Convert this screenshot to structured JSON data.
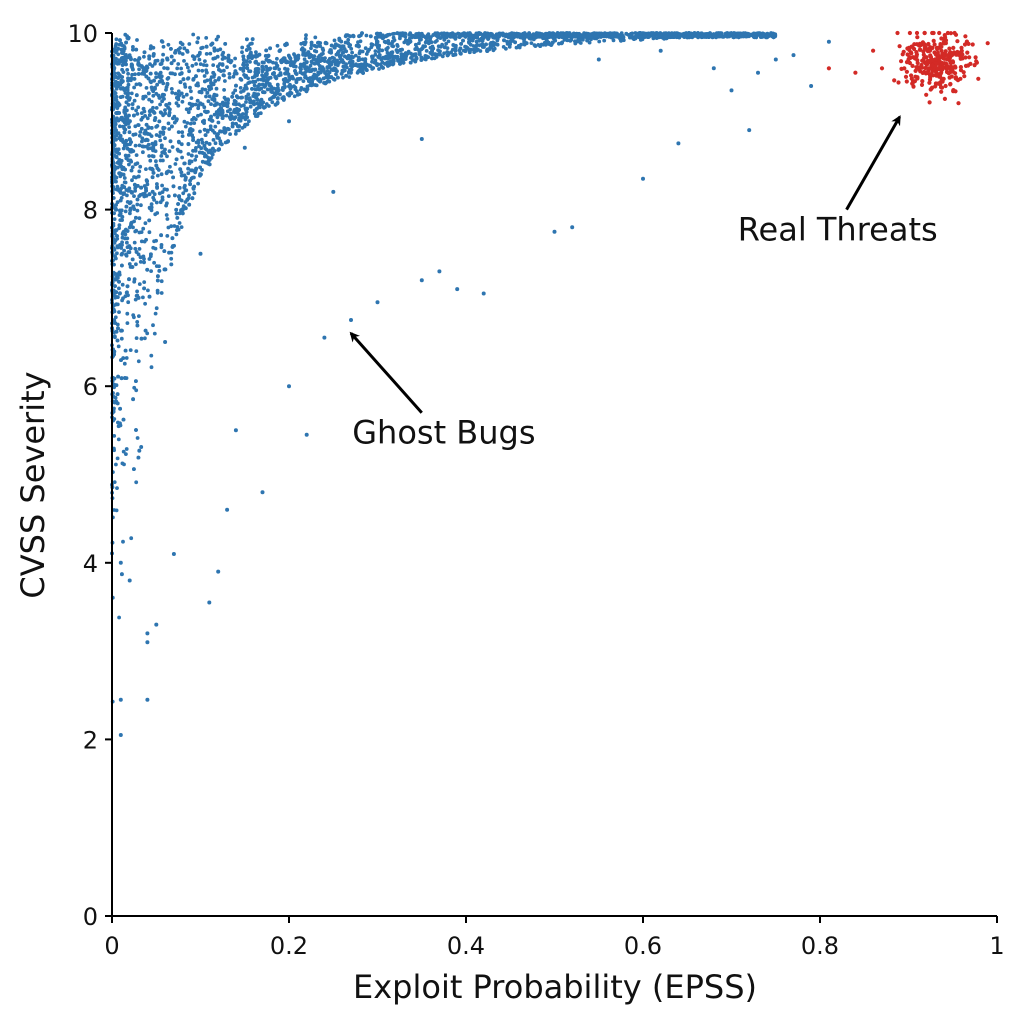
{
  "chart_data": {
    "type": "scatter",
    "title": "",
    "xlabel": "Exploit Probability (EPSS)",
    "ylabel": "CVSS Severity",
    "xlim": [
      0,
      1
    ],
    "ylim": [
      0,
      10
    ],
    "xticks": [
      0,
      0.2,
      0.4,
      0.6,
      0.8,
      1
    ],
    "xtick_labels": [
      "0",
      "0.2",
      "0.4",
      "0.6",
      "0.8",
      "1"
    ],
    "yticks": [
      0,
      2,
      4,
      6,
      8,
      10
    ],
    "ytick_labels": [
      "0",
      "2",
      "4",
      "6",
      "8",
      "10"
    ],
    "grid": false,
    "legend": "none",
    "series": [
      {
        "color": "#2e75b0",
        "approx_count": 4500,
        "distribution": "dense cloud at EPSS 0-0.15, CVSS 7.5-10, spreading right along the top toward EPSS ~0.7 and thinning downward toward CVSS ~2 near EPSS 0-0.1",
        "sample_points": [
          [
            0.01,
            2.05
          ],
          [
            0.01,
            2.45
          ],
          [
            0.04,
            2.45
          ],
          [
            0.04,
            3.1
          ],
          [
            0.04,
            3.2
          ],
          [
            0.05,
            3.3
          ],
          [
            0.11,
            3.55
          ],
          [
            0.12,
            3.9
          ],
          [
            0.01,
            4.0
          ],
          [
            0.02,
            3.8
          ],
          [
            0.07,
            4.1
          ],
          [
            0.13,
            4.6
          ],
          [
            0.17,
            4.8
          ],
          [
            0.22,
            5.45
          ],
          [
            0.2,
            6.0
          ],
          [
            0.14,
            5.5
          ],
          [
            0.24,
            6.55
          ],
          [
            0.27,
            6.75
          ],
          [
            0.3,
            6.95
          ],
          [
            0.35,
            7.2
          ],
          [
            0.37,
            7.3
          ],
          [
            0.39,
            7.1
          ],
          [
            0.42,
            7.05
          ],
          [
            0.5,
            7.75
          ],
          [
            0.52,
            7.8
          ],
          [
            0.6,
            8.35
          ],
          [
            0.64,
            8.75
          ],
          [
            0.7,
            9.35
          ],
          [
            0.72,
            8.9
          ],
          [
            0.73,
            9.55
          ],
          [
            0.75,
            9.7
          ],
          [
            0.77,
            9.75
          ],
          [
            0.79,
            9.4
          ],
          [
            0.81,
            9.9
          ],
          [
            0.62,
            9.8
          ],
          [
            0.65,
            9.95
          ],
          [
            0.68,
            9.6
          ],
          [
            0.55,
            9.7
          ],
          [
            0.45,
            9.9
          ],
          [
            0.3,
            9.9
          ],
          [
            0.1,
            9.2
          ],
          [
            0.05,
            8.5
          ],
          [
            0.08,
            8.0
          ],
          [
            0.15,
            8.7
          ],
          [
            0.2,
            9.0
          ],
          [
            0.03,
            7.0
          ],
          [
            0.06,
            6.5
          ],
          [
            0.1,
            7.5
          ],
          [
            0.25,
            8.2
          ],
          [
            0.35,
            8.8
          ]
        ]
      },
      {
        "color": "#d32a26",
        "approx_count": 300,
        "distribution": "tight cluster centered near EPSS 0.93, CVSS 9.7",
        "center": [
          0.93,
          9.68
        ],
        "sample_points": [
          [
            0.81,
            9.6
          ],
          [
            0.84,
            9.55
          ],
          [
            0.86,
            9.8
          ],
          [
            0.87,
            9.6
          ],
          [
            0.89,
            9.85
          ],
          [
            0.9,
            9.7
          ],
          [
            0.91,
            9.5
          ],
          [
            0.92,
            9.3
          ],
          [
            0.93,
            9.7
          ],
          [
            0.94,
            9.9
          ],
          [
            0.95,
            9.6
          ],
          [
            0.96,
            9.75
          ],
          [
            0.97,
            9.65
          ]
        ]
      }
    ],
    "annotations": [
      {
        "text": "Ghost Bugs",
        "text_at": [
          0.375,
          5.35
        ],
        "arrow_from": [
          0.35,
          5.7
        ],
        "arrow_to": [
          0.27,
          6.6
        ]
      },
      {
        "text": "Real Threats",
        "text_at": [
          0.82,
          7.65
        ],
        "arrow_from": [
          0.83,
          8.0
        ],
        "arrow_to": [
          0.89,
          9.05
        ]
      }
    ]
  }
}
